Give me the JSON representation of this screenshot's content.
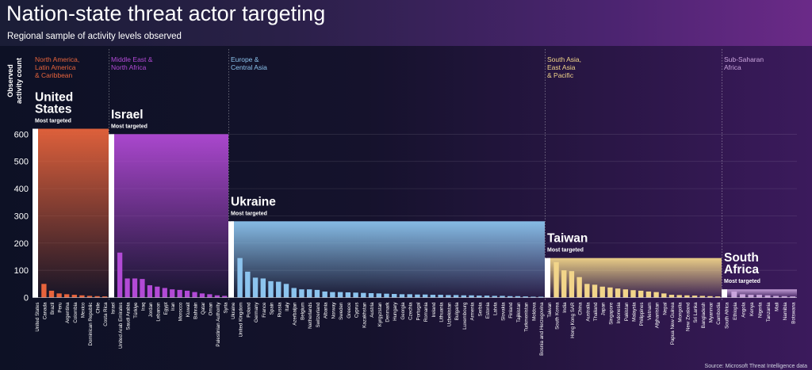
{
  "title": "Nation-state threat actor targeting",
  "subtitle": "Regional sample of activity levels observed",
  "source": "Source: Microsoft Threat Intelligence data",
  "colors": {
    "na": "#e8643c",
    "me": "#b24ad6",
    "eu": "#8cc4ee",
    "ap": "#f2d58a",
    "af": "#c9a4dc"
  },
  "chart_data": {
    "type": "bar",
    "title": "Nation-state threat actor targeting",
    "subtitle": "Regional sample of activity levels observed",
    "ylabel": "Observed activity count",
    "ylim": [
      0,
      620
    ],
    "yticks": [
      0,
      100,
      200,
      300,
      400,
      500,
      600
    ],
    "regions": [
      {
        "key": "na",
        "name": "North America, Latin America & Caribbean",
        "name_lines": [
          "North America,",
          "Latin America",
          "& Caribbean"
        ],
        "top_country": "United States",
        "top_lines": [
          "United",
          "States"
        ],
        "most_targeted_label": "Most targeted",
        "categories": [
          "United States",
          "Canada",
          "Brazil",
          "Peru",
          "Argentina",
          "Colombia",
          "Mexico",
          "Dominican Republic",
          "Chile",
          "Costa Rica"
        ],
        "values": [
          620,
          50,
          25,
          15,
          12,
          10,
          8,
          6,
          5,
          4
        ]
      },
      {
        "key": "me",
        "name": "Middle East & North Africa",
        "name_lines": [
          "Middle East &",
          "North Africa"
        ],
        "top_country": "Israel",
        "top_lines": [
          "Israel"
        ],
        "most_targeted_label": "Most targeted",
        "categories": [
          "Israel",
          "United Arab Emirates",
          "Saudi Arabia",
          "Türkiye",
          "Iraq",
          "Jordan",
          "Lebanon",
          "Egypt",
          "Iran",
          "Morocco",
          "Kuwait",
          "Bahrain",
          "Qatar",
          "Oman",
          "Palestinian Authority",
          "Syria"
        ],
        "values": [
          600,
          165,
          70,
          70,
          68,
          45,
          40,
          35,
          30,
          28,
          25,
          20,
          15,
          12,
          8,
          6
        ]
      },
      {
        "key": "eu",
        "name": "Europe & Central Asia",
        "name_lines": [
          "Europe &",
          "Central Asia"
        ],
        "top_country": "Ukraine",
        "top_lines": [
          "Ukraine"
        ],
        "most_targeted_label": "Most targeted",
        "categories": [
          "Ukraine",
          "United Kingdom",
          "Poland",
          "Germany",
          "France",
          "Spain",
          "Russia",
          "Italy",
          "Azerbaijan",
          "Belgium",
          "Netherlands",
          "Switzerland",
          "Albania",
          "Norway",
          "Sweden",
          "Greece",
          "Cyprus",
          "Kazakhstan",
          "Austria",
          "Kyrgyzstan",
          "Denmark",
          "Hungary",
          "Georgia",
          "Czechia",
          "Portugal",
          "Romania",
          "Ireland",
          "Lithuania",
          "Uzbekistan",
          "Bulgaria",
          "Luxembourg",
          "Armenia",
          "Serbia",
          "Estonia",
          "Latvia",
          "Slovakia",
          "Finland",
          "Tajikistan",
          "Turkmenistan",
          "Moldova",
          "Bosnia and Herzegovina"
        ],
        "values": [
          280,
          145,
          95,
          73,
          70,
          60,
          58,
          50,
          35,
          30,
          30,
          28,
          22,
          20,
          20,
          19,
          18,
          17,
          16,
          15,
          14,
          13,
          12,
          12,
          11,
          11,
          10,
          10,
          9,
          9,
          8,
          8,
          7,
          7,
          6,
          6,
          5,
          5,
          4,
          3,
          3
        ]
      },
      {
        "key": "ap",
        "name": "South Asia, East Asia & Pacific",
        "name_lines": [
          "South Asia,",
          "East Asia",
          "& Pacific"
        ],
        "top_country": "Taiwan",
        "top_lines": [
          "Taiwan"
        ],
        "most_targeted_label": "Most targeted",
        "categories": [
          "Taiwan",
          "South Korea",
          "India",
          "Hong Kong SAR",
          "China",
          "Australia",
          "Thailand",
          "Japan",
          "Singapore",
          "Indonesia",
          "Pakistan",
          "Malaysia",
          "Philippines",
          "Vietnam",
          "Afghanistan",
          "Nepal",
          "Papua New Guinea",
          "Mongolia",
          "New Zealand",
          "Sri Lanka",
          "Bangladesh",
          "Myanmar",
          "Cambodia"
        ],
        "values": [
          145,
          130,
          100,
          97,
          75,
          50,
          47,
          40,
          37,
          33,
          30,
          27,
          25,
          22,
          20,
          15,
          10,
          9,
          8,
          7,
          6,
          5,
          4
        ]
      },
      {
        "key": "af",
        "name": "Sub-Saharan Africa",
        "name_lines": [
          "Sub-Saharan",
          "Africa"
        ],
        "top_country": "South Africa",
        "top_lines": [
          "South",
          "Africa"
        ],
        "most_targeted_label": "Most targeted",
        "categories": [
          "South Africa",
          "Ethiopia",
          "Angola",
          "Kenya",
          "Nigeria",
          "Tanzania",
          "Mali",
          "Namibia",
          "Botswana"
        ],
        "values": [
          30,
          22,
          12,
          10,
          10,
          8,
          6,
          5,
          4
        ]
      }
    ]
  }
}
